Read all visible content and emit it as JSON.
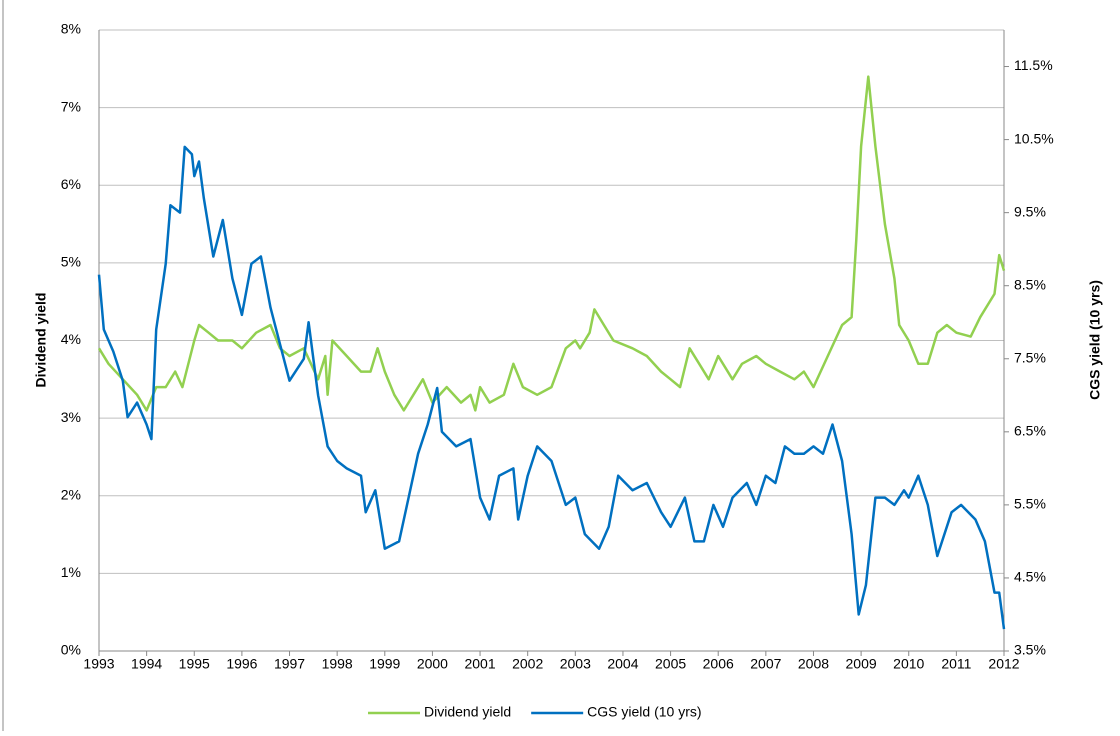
{
  "chart_data": {
    "type": "line",
    "y_label": "Dividend yield",
    "y2_label": "CGS yield (10 yrs)",
    "xlim": [
      1993,
      2012
    ],
    "xticks": [
      1993,
      1994,
      1995,
      1996,
      1997,
      1998,
      1999,
      2000,
      2001,
      2002,
      2003,
      2004,
      2005,
      2006,
      2007,
      2008,
      2009,
      2010,
      2011,
      2012
    ],
    "ylim": [
      0,
      8
    ],
    "yticks": [
      {
        "value": 0,
        "label": "0%"
      },
      {
        "value": 1,
        "label": "1%"
      },
      {
        "value": 2,
        "label": "2%"
      },
      {
        "value": 3,
        "label": "3%"
      },
      {
        "value": 4,
        "label": "4%"
      },
      {
        "value": 5,
        "label": "5%"
      },
      {
        "value": 6,
        "label": "6%"
      },
      {
        "value": 7,
        "label": "7%"
      },
      {
        "value": 8,
        "label": "8%"
      }
    ],
    "y2lim": [
      3.5,
      12
    ],
    "y2ticks": [
      {
        "value": 3.5,
        "label": "3.5%"
      },
      {
        "value": 4.5,
        "label": "4.5%"
      },
      {
        "value": 5.5,
        "label": "5.5%"
      },
      {
        "value": 6.5,
        "label": "6.5%"
      },
      {
        "value": 7.5,
        "label": "7.5%"
      },
      {
        "value": 8.5,
        "label": "8.5%"
      },
      {
        "value": 9.5,
        "label": "9.5%"
      },
      {
        "value": 10.5,
        "label": "10.5%"
      },
      {
        "value": 11.5,
        "label": "11.5%"
      }
    ],
    "grid": true,
    "legend": "bottom",
    "series": [
      {
        "name": "Dividend yield",
        "color": "#92d050",
        "axis": "y",
        "x": [
          1993.0,
          1993.2,
          1993.5,
          1993.8,
          1994.0,
          1994.2,
          1994.4,
          1994.6,
          1994.75,
          1995.0,
          1995.1,
          1995.3,
          1995.5,
          1995.8,
          1996.0,
          1996.3,
          1996.6,
          1996.8,
          1997.0,
          1997.3,
          1997.6,
          1997.75,
          1997.8,
          1997.9,
          1998.2,
          1998.5,
          1998.7,
          1998.85,
          1999.0,
          1999.2,
          1999.4,
          1999.6,
          1999.8,
          2000.0,
          2000.3,
          2000.6,
          2000.8,
          2000.9,
          2001.0,
          2001.2,
          2001.5,
          2001.7,
          2001.9,
          2002.2,
          2002.5,
          2002.8,
          2003.0,
          2003.1,
          2003.3,
          2003.4,
          2003.6,
          2003.8,
          2004.2,
          2004.5,
          2004.8,
          2005.0,
          2005.2,
          2005.4,
          2005.6,
          2005.8,
          2006.0,
          2006.3,
          2006.5,
          2006.8,
          2007.0,
          2007.3,
          2007.6,
          2007.8,
          2008.0,
          2008.3,
          2008.6,
          2008.8,
          2008.9,
          2009.0,
          2009.15,
          2009.3,
          2009.5,
          2009.7,
          2009.8,
          2010.0,
          2010.2,
          2010.4,
          2010.6,
          2010.8,
          2011.0,
          2011.3,
          2011.5,
          2011.8,
          2011.9,
          2012.0
        ],
        "values": [
          3.9,
          3.7,
          3.5,
          3.3,
          3.1,
          3.4,
          3.4,
          3.6,
          3.4,
          4.0,
          4.2,
          4.1,
          4.0,
          4.0,
          3.9,
          4.1,
          4.2,
          3.9,
          3.8,
          3.9,
          3.5,
          3.8,
          3.3,
          4.0,
          3.8,
          3.6,
          3.6,
          3.9,
          3.6,
          3.3,
          3.1,
          3.3,
          3.5,
          3.2,
          3.4,
          3.2,
          3.3,
          3.1,
          3.4,
          3.2,
          3.3,
          3.7,
          3.4,
          3.3,
          3.4,
          3.9,
          4.0,
          3.9,
          4.1,
          4.4,
          4.2,
          4.0,
          3.9,
          3.8,
          3.6,
          3.5,
          3.4,
          3.9,
          3.7,
          3.5,
          3.8,
          3.5,
          3.7,
          3.8,
          3.7,
          3.6,
          3.5,
          3.6,
          3.4,
          3.8,
          4.2,
          4.3,
          5.3,
          6.5,
          7.4,
          6.5,
          5.5,
          4.8,
          4.2,
          4.0,
          3.7,
          3.7,
          4.1,
          4.2,
          4.1,
          4.05,
          4.3,
          4.6,
          5.1,
          4.9
        ]
      },
      {
        "name": "CGS yield (10 yrs)",
        "color": "#0070c0",
        "axis": "y2",
        "x": [
          1993.0,
          1993.1,
          1993.3,
          1993.5,
          1993.6,
          1993.8,
          1994.0,
          1994.1,
          1994.2,
          1994.4,
          1994.5,
          1994.7,
          1994.8,
          1994.95,
          1995.0,
          1995.1,
          1995.2,
          1995.4,
          1995.6,
          1995.8,
          1996.0,
          1996.2,
          1996.4,
          1996.6,
          1996.8,
          1997.0,
          1997.3,
          1997.4,
          1997.6,
          1997.8,
          1998.0,
          1998.2,
          1998.5,
          1998.6,
          1998.8,
          1999.0,
          1999.3,
          1999.5,
          1999.7,
          1999.9,
          2000.1,
          2000.2,
          2000.5,
          2000.8,
          2001.0,
          2001.2,
          2001.4,
          2001.7,
          2001.8,
          2002.0,
          2002.2,
          2002.5,
          2002.8,
          2003.0,
          2003.2,
          2003.5,
          2003.7,
          2003.9,
          2004.2,
          2004.5,
          2004.8,
          2005.0,
          2005.3,
          2005.5,
          2005.7,
          2005.9,
          2006.1,
          2006.3,
          2006.6,
          2006.8,
          2007.0,
          2007.2,
          2007.4,
          2007.6,
          2007.8,
          2008.0,
          2008.2,
          2008.4,
          2008.6,
          2008.8,
          2008.95,
          2009.1,
          2009.3,
          2009.5,
          2009.7,
          2009.9,
          2010.0,
          2010.2,
          2010.4,
          2010.6,
          2010.9,
          2011.1,
          2011.4,
          2011.6,
          2011.8,
          2011.9,
          2012.0
        ],
        "values": [
          8.65,
          7.9,
          7.6,
          7.2,
          6.7,
          6.9,
          6.6,
          6.4,
          7.9,
          8.8,
          9.6,
          9.5,
          10.4,
          10.3,
          10.0,
          10.2,
          9.7,
          8.9,
          9.4,
          8.6,
          8.1,
          8.8,
          8.9,
          8.2,
          7.7,
          7.2,
          7.5,
          8.0,
          7.0,
          6.3,
          6.1,
          6.0,
          5.9,
          5.4,
          5.7,
          4.9,
          5.0,
          5.6,
          6.2,
          6.6,
          7.1,
          6.5,
          6.3,
          6.4,
          5.6,
          5.3,
          5.9,
          6.0,
          5.3,
          5.9,
          6.3,
          6.1,
          5.5,
          5.6,
          5.1,
          4.9,
          5.2,
          5.9,
          5.7,
          5.8,
          5.4,
          5.2,
          5.6,
          5.0,
          5.0,
          5.5,
          5.2,
          5.6,
          5.8,
          5.5,
          5.9,
          5.8,
          6.3,
          6.2,
          6.2,
          6.3,
          6.2,
          6.6,
          6.1,
          5.1,
          4.0,
          4.4,
          5.6,
          5.6,
          5.5,
          5.7,
          5.6,
          5.9,
          5.5,
          4.8,
          5.4,
          5.5,
          5.3,
          5.0,
          4.3,
          4.3,
          3.8
        ]
      }
    ]
  }
}
